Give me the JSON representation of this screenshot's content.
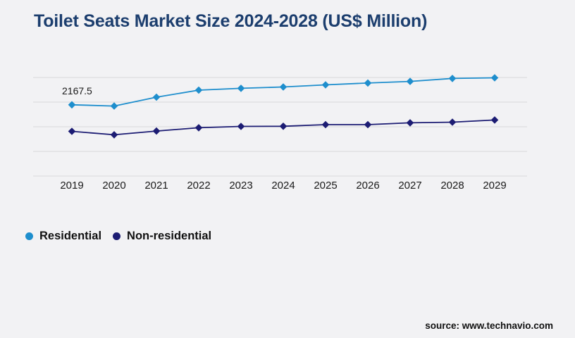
{
  "page": {
    "source": "source: www.technavio.com",
    "background_color": "#f2f2f4",
    "title_color": "#1c3e6e",
    "gridline_color": "#d8d8da"
  },
  "chart_data": {
    "type": "line",
    "title": "Toilet Seats Market Size 2024-2028 (US$ Million)",
    "xlabel": "",
    "ylabel": "",
    "categories": [
      "2019",
      "2020",
      "2021",
      "2022",
      "2023",
      "2024",
      "2025",
      "2026",
      "2027",
      "2028",
      "2029"
    ],
    "series": [
      {
        "name": "Residential",
        "color": "#1e8ecd",
        "marker": "diamond",
        "values": [
          2167.5,
          2130,
          2400,
          2615,
          2670,
          2710,
          2775,
          2830,
          2880,
          2970,
          2990
        ]
      },
      {
        "name": "Non-residential",
        "color": "#1c1c73",
        "marker": "diamond",
        "values": [
          1360,
          1255,
          1370,
          1470,
          1510,
          1515,
          1565,
          1565,
          1620,
          1640,
          1705
        ]
      }
    ],
    "annotation": {
      "series": "Residential",
      "category": "2019",
      "text": "2167.5"
    },
    "ylim": [
      0,
      3000
    ],
    "gridline_values": [
      0,
      750,
      1500,
      2250,
      3000
    ],
    "grid": "horizontal-only",
    "y_axis_labels_visible": false,
    "legend_position": "bottom-left"
  }
}
